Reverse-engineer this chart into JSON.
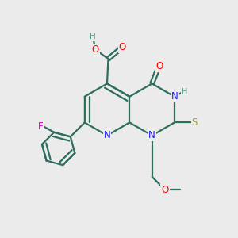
{
  "bg_color": "#ebebeb",
  "bond_color": "#2d6e5e",
  "bond_width": 1.6,
  "atom_colors": {
    "N": "#1a1aff",
    "O": "#ff0000",
    "S": "#aaaa00",
    "F": "#cc00cc",
    "H_label": "#5a9a8a",
    "C": "#2d6e5e"
  },
  "figsize": [
    3.0,
    3.0
  ],
  "dpi": 100
}
